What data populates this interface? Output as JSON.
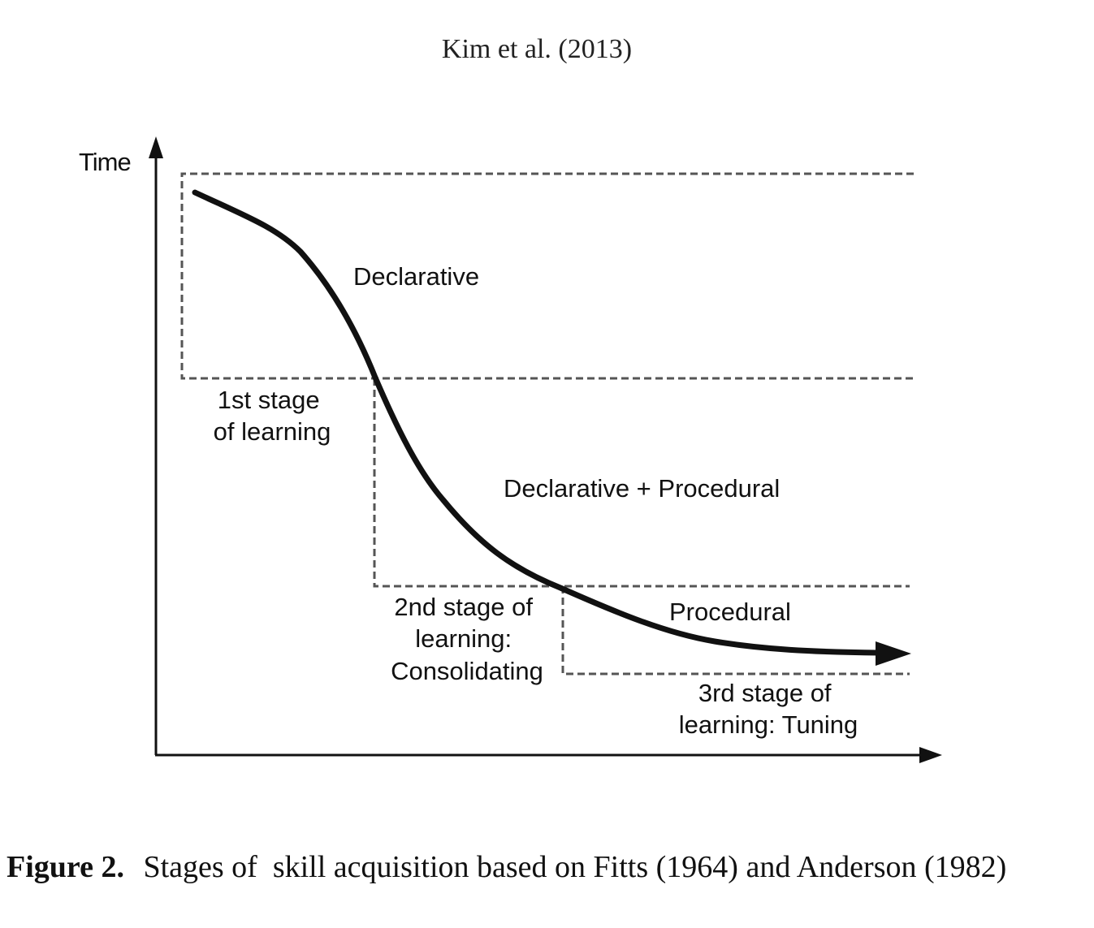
{
  "header": {
    "citation": "Kim et al. (2013)"
  },
  "diagram": {
    "y_axis_label": "Time",
    "regions": {
      "declarative": "Declarative",
      "declarative_procedural": "Declarative + Procedural",
      "procedural": "Procedural"
    },
    "stages": {
      "first": [
        "1st stage",
        "of learning"
      ],
      "second": [
        "2nd stage of",
        "learning:",
        "Consolidating"
      ],
      "third": [
        "3rd stage of",
        "learning: Tuning"
      ]
    }
  },
  "caption": {
    "label": "Figure 2.",
    "text": "Stages of  skill acquisition based on Fitts (1964) and Anderson (1982)"
  }
}
